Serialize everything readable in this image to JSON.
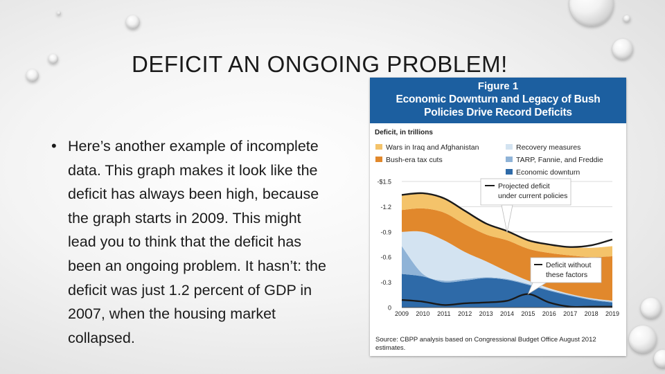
{
  "slide": {
    "title": "DEFICIT AN ONGOING PROBLEM!",
    "bullet": "Here’s another example of incomplete data. This graph makes it look like the deficit has always been high, because the graph starts in 2009. This might lead you to think that the deficit has been an ongoing problem. It hasn’t: the deficit was just 1.2 percent of GDP in 2007, when the housing market collapsed.",
    "bullet_symbol": "•"
  },
  "figure": {
    "number": "Figure 1",
    "title_line1": "Economic Downturn and Legacy of Bush",
    "title_line2": "Policies Drive Record Deficits",
    "source_line1": "Source: CBPP analysis based on Congressional Budget Office August 2012",
    "source_line2": "estimates."
  },
  "chart_data": {
    "type": "area",
    "ylabel": "Deficit, in trillions",
    "x": [
      "2009",
      "2010",
      "2011",
      "2012",
      "2013",
      "2014",
      "2015",
      "2016",
      "2017",
      "2018",
      "2019"
    ],
    "ylim": [
      0,
      1.5
    ],
    "y_ticks": [
      {
        "value": 1.5,
        "label": "-$1.5"
      },
      {
        "value": 1.2,
        "label": "-1.2"
      },
      {
        "value": 0.9,
        "label": "-0.9"
      },
      {
        "value": 0.6,
        "label": "-0.6"
      },
      {
        "value": 0.3,
        "label": "-0.3"
      },
      {
        "value": 0,
        "label": "0"
      }
    ],
    "series": [
      {
        "name": "Economic downturn",
        "color": "#2e6aa8",
        "values": [
          0.4,
          0.37,
          0.3,
          0.32,
          0.35,
          0.33,
          0.27,
          0.2,
          0.14,
          0.09,
          0.06
        ]
      },
      {
        "name": "TARP, Fannie, and Freddie",
        "color": "#8fb3d7",
        "values": [
          0.33,
          0.03,
          0.02,
          0.02,
          0.01,
          0.01,
          0.01,
          0.01,
          0.01,
          0.01,
          0.01
        ]
      },
      {
        "name": "Recovery measures",
        "color": "#d3e3f1",
        "values": [
          0.17,
          0.5,
          0.48,
          0.32,
          0.19,
          0.09,
          0.04,
          0.02,
          0.01,
          0.01,
          0.01
        ]
      },
      {
        "name": "Bush-era tax cuts",
        "color": "#e1882c",
        "values": [
          0.26,
          0.28,
          0.33,
          0.33,
          0.32,
          0.37,
          0.38,
          0.42,
          0.46,
          0.49,
          0.53
        ]
      },
      {
        "name": "Wars in Iraq and Afghanistan",
        "color": "#f4c36a",
        "values": [
          0.18,
          0.18,
          0.17,
          0.16,
          0.13,
          0.11,
          0.1,
          0.1,
          0.1,
          0.11,
          0.12
        ]
      }
    ],
    "lines": [
      {
        "name": "Projected deficit under current policies",
        "values": [
          1.34,
          1.36,
          1.3,
          1.15,
          1.0,
          0.91,
          0.8,
          0.75,
          0.72,
          0.74,
          0.81
        ]
      },
      {
        "name": "Deficit without these factors",
        "values": [
          0.09,
          0.07,
          0.03,
          0.05,
          0.06,
          0.08,
          0.16,
          0.06,
          0.01,
          0.01,
          0.01
        ]
      }
    ],
    "annotations": [
      {
        "line1": "Projected deficit",
        "line2": "under current policies"
      },
      {
        "line1": "Deficit without",
        "line2": "these factors"
      }
    ],
    "grid": true,
    "legend_position": "top"
  }
}
